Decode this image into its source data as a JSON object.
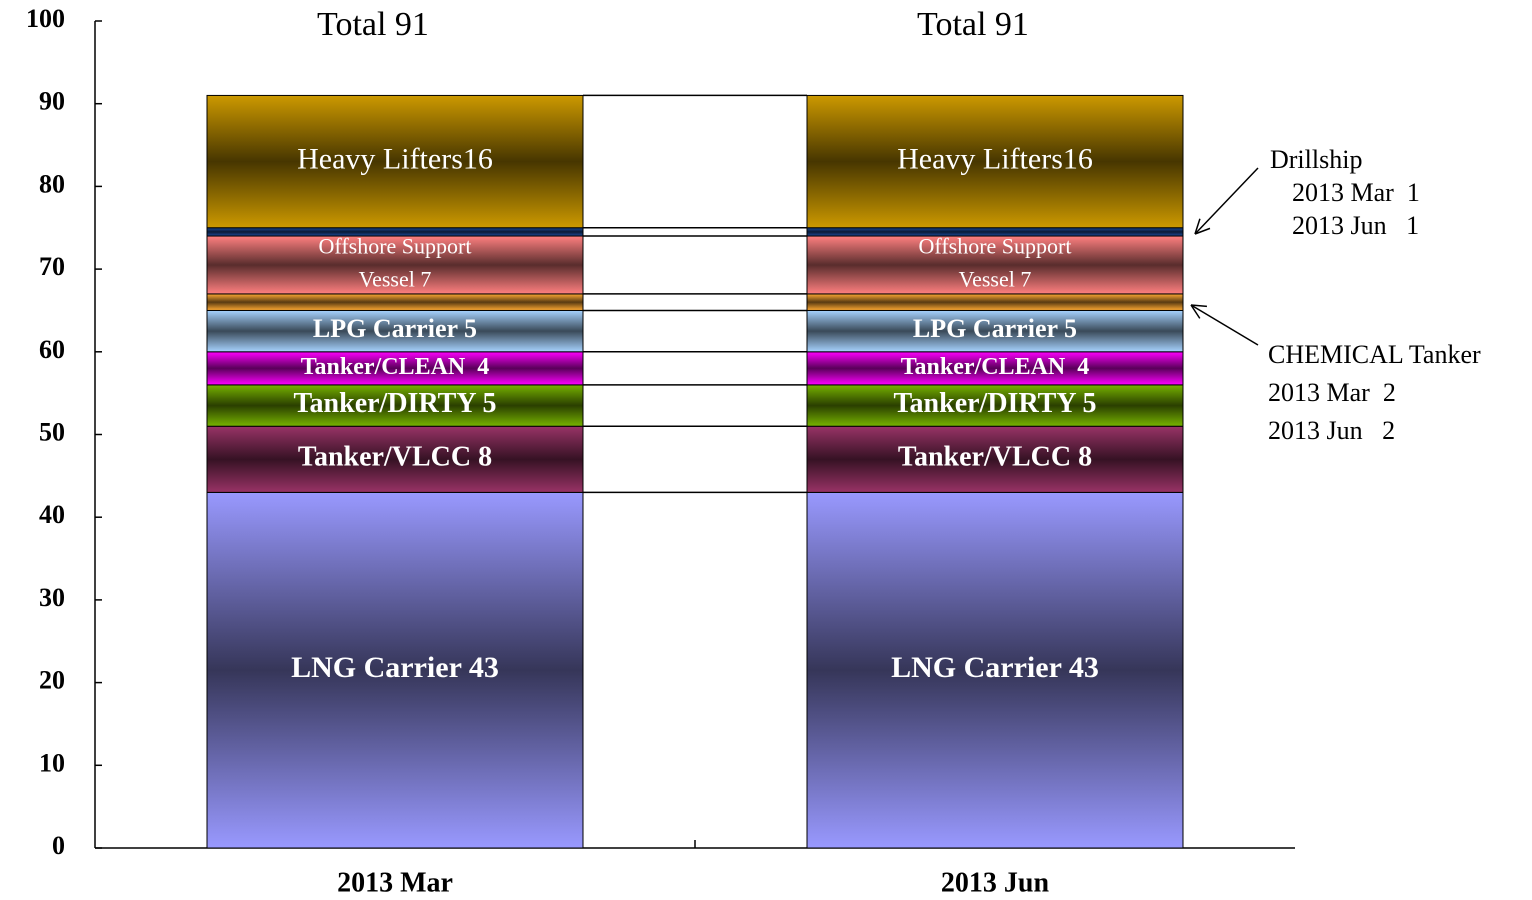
{
  "chart_data": {
    "type": "stacked_bar",
    "categories": [
      "2013 Mar",
      "2013 Jun"
    ],
    "annotations": [
      "Total 91",
      "Total 91"
    ],
    "series": [
      {
        "color": "#9999ff",
        "values": [
          43,
          43
        ],
        "value_labels": [
          "LNG Carrier 43",
          "LNG Carrier 43"
        ]
      },
      {
        "color": "#993366",
        "values": [
          8,
          8
        ],
        "value_labels": [
          "Tanker/VLCC 8",
          "Tanker/VLCC 8"
        ]
      },
      {
        "color": "#77b300",
        "values": [
          5,
          5
        ],
        "value_labels": [
          "Tanker/DIRTY 5",
          "Tanker/DIRTY 5"
        ]
      },
      {
        "color": "#ff00ff",
        "values": [
          4,
          4
        ],
        "value_labels": [
          "Tanker/CLEAN  4",
          "Tanker/CLEAN  4"
        ]
      },
      {
        "color": "#a6d2ff",
        "values": [
          5,
          5
        ],
        "value_labels": [
          "LPG Carrier 5",
          "LPG Carrier 5"
        ]
      },
      {
        "name": "CHEMICAL Tanker",
        "color": "#ffaa33",
        "values": [
          2,
          2
        ],
        "value_labels": [
          "2013 Mar  2",
          "2013 Jun   2"
        ]
      },
      {
        "color": "#ff8080",
        "values": [
          7,
          7
        ],
        "value_labels": [
          [
            "Offshore Support",
            "Vessel 7"
          ],
          [
            "Offshore Support",
            "Vessel 7"
          ]
        ]
      },
      {
        "name": "Drillship",
        "color": "#1a4a99",
        "values": [
          1,
          1
        ],
        "value_labels": [
          "2013 Mar  1",
          "2013 Jun   1"
        ]
      },
      {
        "color": "#cc9900",
        "values": [
          16,
          16
        ],
        "value_labels": [
          "Heavy Lifters16",
          "Heavy Lifters16"
        ]
      }
    ],
    "ylim": [
      0,
      100
    ],
    "yticks": [
      0,
      10,
      20,
      30,
      40,
      50,
      60,
      70,
      80,
      90,
      100
    ]
  }
}
